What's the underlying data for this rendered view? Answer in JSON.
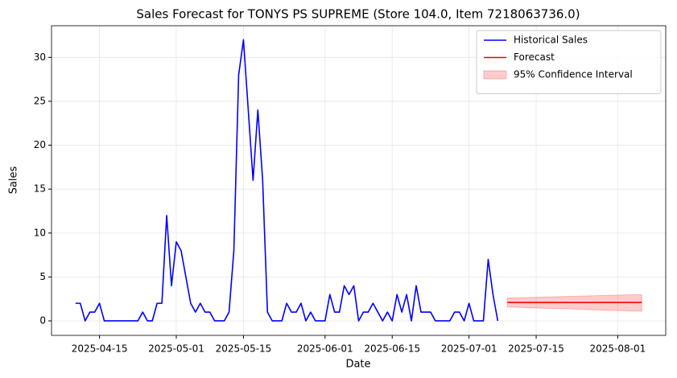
{
  "chart_data": {
    "type": "line",
    "title": "Sales Forecast for TONYS PS SUPREME (Store 104.0, Item 7218063736.0)",
    "x_label": "Date",
    "y_label": "Sales",
    "xlim": [
      "2025-04-05",
      "2025-08-11"
    ],
    "ylim": [
      -1.65,
      33.6
    ],
    "xticks": [
      "2025-04-15",
      "2025-05-01",
      "2025-05-15",
      "2025-06-01",
      "2025-06-15",
      "2025-07-01",
      "2025-07-15",
      "2025-08-01"
    ],
    "yticks": [
      0,
      5,
      10,
      15,
      20,
      25,
      30
    ],
    "grid": true,
    "legend": "upper right",
    "series": [
      {
        "name": "Historical Sales",
        "color": "#0000ff",
        "x": [
          "2025-04-10",
          "2025-04-11",
          "2025-04-12",
          "2025-04-13",
          "2025-04-14",
          "2025-04-15",
          "2025-04-16",
          "2025-04-17",
          "2025-04-18",
          "2025-04-19",
          "2025-04-20",
          "2025-04-21",
          "2025-04-22",
          "2025-04-23",
          "2025-04-24",
          "2025-04-25",
          "2025-04-26",
          "2025-04-27",
          "2025-04-28",
          "2025-04-29",
          "2025-04-30",
          "2025-05-01",
          "2025-05-02",
          "2025-05-03",
          "2025-05-04",
          "2025-05-05",
          "2025-05-06",
          "2025-05-07",
          "2025-05-08",
          "2025-05-09",
          "2025-05-10",
          "2025-05-11",
          "2025-05-12",
          "2025-05-13",
          "2025-05-14",
          "2025-05-15",
          "2025-05-16",
          "2025-05-17",
          "2025-05-18",
          "2025-05-19",
          "2025-05-20",
          "2025-05-21",
          "2025-05-22",
          "2025-05-23",
          "2025-05-24",
          "2025-05-25",
          "2025-05-26",
          "2025-05-27",
          "2025-05-28",
          "2025-05-29",
          "2025-05-30",
          "2025-05-31",
          "2025-06-01",
          "2025-06-02",
          "2025-06-03",
          "2025-06-04",
          "2025-06-05",
          "2025-06-06",
          "2025-06-07",
          "2025-06-08",
          "2025-06-09",
          "2025-06-10",
          "2025-06-11",
          "2025-06-12",
          "2025-06-13",
          "2025-06-14",
          "2025-06-15",
          "2025-06-16",
          "2025-06-17",
          "2025-06-18",
          "2025-06-19",
          "2025-06-20",
          "2025-06-21",
          "2025-06-22",
          "2025-06-23",
          "2025-06-24",
          "2025-06-25",
          "2025-06-26",
          "2025-06-27",
          "2025-06-28",
          "2025-06-29",
          "2025-06-30",
          "2025-07-01",
          "2025-07-02",
          "2025-07-03",
          "2025-07-04",
          "2025-07-05",
          "2025-07-06",
          "2025-07-07"
        ],
        "values": [
          2,
          2,
          0,
          1,
          1,
          2,
          0,
          0,
          0,
          0,
          0,
          0,
          0,
          0,
          1,
          0,
          0,
          2,
          2,
          12,
          4,
          9,
          8,
          5,
          2,
          1,
          2,
          1,
          1,
          0,
          0,
          0,
          1,
          8,
          28,
          32,
          24,
          16,
          24,
          16,
          1,
          0,
          0,
          0,
          2,
          1,
          1,
          2,
          0,
          1,
          0,
          0,
          0,
          3,
          1,
          1,
          4,
          3,
          4,
          0,
          1,
          1,
          2,
          1,
          0,
          1,
          0,
          3,
          1,
          3,
          0,
          4,
          1,
          1,
          1,
          0,
          0,
          0,
          0,
          1,
          1,
          0,
          2,
          0,
          0,
          0,
          7,
          3,
          0
        ]
      },
      {
        "name": "Forecast",
        "color": "#ff0000",
        "x": [
          "2025-07-09",
          "2025-07-16",
          "2025-07-23",
          "2025-07-30",
          "2025-08-06"
        ],
        "values": [
          2.1,
          2.1,
          2.1,
          2.1,
          2.1
        ]
      }
    ],
    "confidence_interval": {
      "name": "95% Confidence Interval",
      "color": "#ff0000",
      "x": [
        "2025-07-09",
        "2025-07-16",
        "2025-07-23",
        "2025-07-30",
        "2025-08-06"
      ],
      "lower": [
        1.6,
        1.45,
        1.35,
        1.2,
        1.1
      ],
      "upper": [
        2.6,
        2.7,
        2.8,
        2.9,
        3.0
      ]
    }
  }
}
